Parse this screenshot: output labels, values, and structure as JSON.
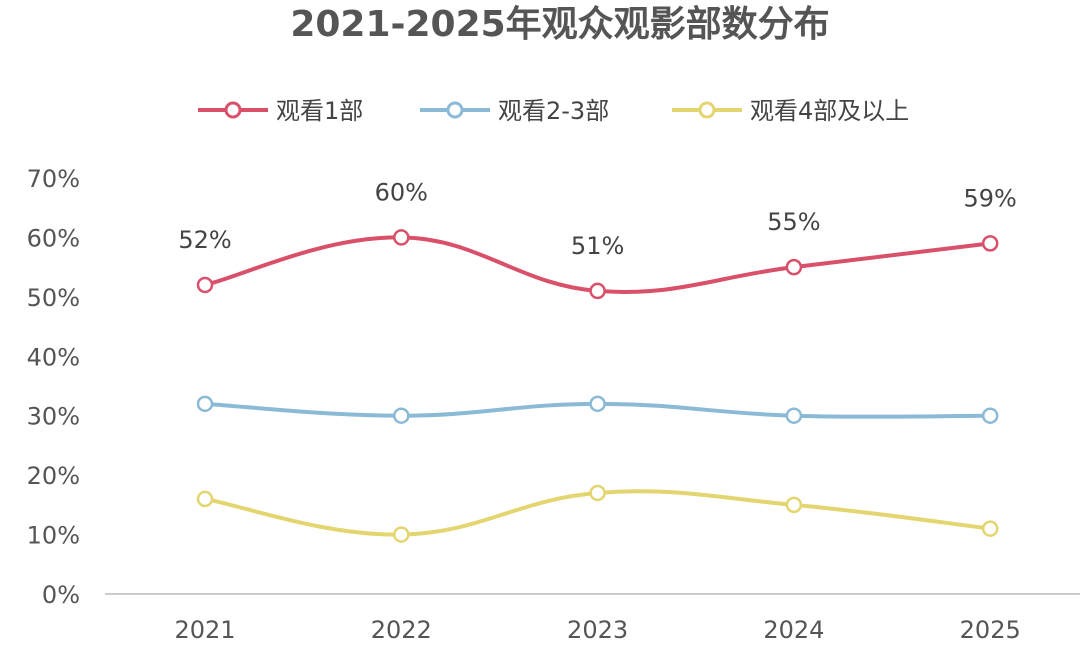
{
  "chart_data": {
    "type": "line",
    "title": "2021-2025年观众观影部数分布",
    "categories": [
      "2021",
      "2022",
      "2023",
      "2024",
      "2025"
    ],
    "ylim": [
      0,
      70
    ],
    "yticks": [
      "0%",
      "10%",
      "20%",
      "30%",
      "40%",
      "50%",
      "60%",
      "70%"
    ],
    "legend_position": "top",
    "grid": false,
    "series": [
      {
        "name": "观看1部",
        "values": [
          52,
          60,
          51,
          55,
          59
        ],
        "color": "#d9506a",
        "labels": [
          "52%",
          "60%",
          "51%",
          "55%",
          "59%"
        ]
      },
      {
        "name": "观看2-3部",
        "values": [
          32,
          30,
          32,
          30,
          30
        ],
        "color": "#8bbad6"
      },
      {
        "name": "观看4部及以上",
        "values": [
          16,
          10,
          17,
          15,
          11
        ],
        "color": "#e3d56f"
      }
    ]
  }
}
